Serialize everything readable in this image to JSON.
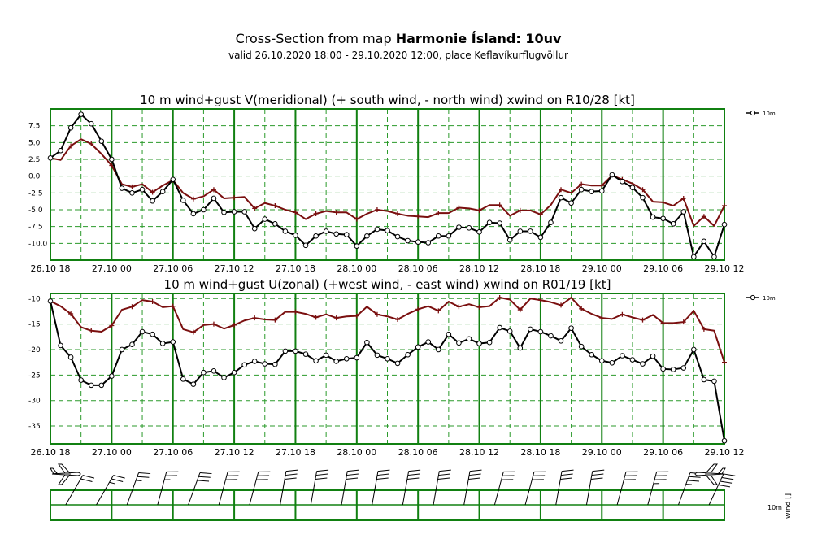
{
  "header": {
    "title_prefix": "Cross-Section from map",
    "title_bold": "Harmonie Ísland: 10uv",
    "subtitle": "valid 26.10.2020 18:00 - 29.10.2020 12:00, place Keflavíkurflugvöllur"
  },
  "colors": {
    "frame": "#118011",
    "grid_major": "#118011",
    "grid_minor": "#2b9a2b",
    "wind_series": "#000000",
    "gust_series": "#7a0f0f",
    "barb": "#000000"
  },
  "legend_label": "10m",
  "barb_labels": {
    "level": "10m",
    "param": "wind []"
  },
  "chart_data": [
    {
      "type": "line",
      "title": "10 m wind+gust V(meridional) (+ south wind, - north wind) xwind on R10/28 [kt]",
      "x_tick_labels": [
        "26.10 18",
        "27.10 00",
        "27.10 06",
        "27.10 12",
        "27.10 18",
        "28.10 00",
        "28.10 06",
        "28.10 12",
        "28.10 18",
        "29.10 00",
        "29.10 06",
        "29.10 12"
      ],
      "x_hours_range": [
        0,
        66
      ],
      "ylim": [
        -12.5,
        10
      ],
      "yticks": [
        7.5,
        5.0,
        2.5,
        0.0,
        -2.5,
        -5.0,
        -7.5,
        -10.0
      ],
      "ytick_labels": [
        "7.5",
        "5.0",
        "2.5",
        "0.0",
        "-2.5",
        "-5.0",
        "-7.5",
        "-10.0"
      ],
      "series": [
        {
          "name": "10m wind",
          "marker": "circle",
          "values": [
            2.7,
            3.8,
            7.2,
            9.2,
            7.8,
            5.2,
            2.5,
            -1.8,
            -2.5,
            -2.0,
            -3.7,
            -2.3,
            -0.5,
            -3.6,
            -5.6,
            -5.0,
            -3.3,
            -5.4,
            -5.3,
            -5.3,
            -7.8,
            -6.4,
            -7.1,
            -8.2,
            -8.8,
            -10.3,
            -8.9,
            -8.2,
            -8.6,
            -8.7,
            -10.4,
            -8.9,
            -7.9,
            -8.1,
            -9.0,
            -9.6,
            -9.8,
            -9.9,
            -8.9,
            -8.9,
            -7.6,
            -7.7,
            -8.3,
            -6.9,
            -7.0,
            -9.5,
            -8.2,
            -8.2,
            -9.1,
            -6.9,
            -3.2,
            -4.0,
            -2.0,
            -2.3,
            -2.2,
            0.2,
            -0.8,
            -1.7,
            -3.2,
            -6.1,
            -6.3,
            -7.1,
            -5.3,
            -12.0,
            -9.7,
            -12.0,
            -7.2
          ]
        },
        {
          "name": "10m gust",
          "marker": "plus",
          "values": [
            2.7,
            2.4,
            4.5,
            5.5,
            4.8,
            3.3,
            1.6,
            -1.2,
            -1.6,
            -1.2,
            -2.4,
            -1.4,
            -0.6,
            -2.5,
            -3.4,
            -3.0,
            -2.0,
            -3.3,
            -3.2,
            -3.1,
            -4.8,
            -4.0,
            -4.4,
            -5.0,
            -5.4,
            -6.4,
            -5.6,
            -5.2,
            -5.4,
            -5.4,
            -6.4,
            -5.6,
            -5.0,
            -5.2,
            -5.6,
            -5.9,
            -6.0,
            -6.1,
            -5.5,
            -5.5,
            -4.7,
            -4.8,
            -5.1,
            -4.3,
            -4.3,
            -5.9,
            -5.1,
            -5.1,
            -5.7,
            -4.3,
            -2.0,
            -2.5,
            -1.2,
            -1.4,
            -1.4,
            0.1,
            -0.5,
            -1.1,
            -2.0,
            -3.8,
            -3.9,
            -4.4,
            -3.3,
            -7.4,
            -6.0,
            -7.4,
            -4.4
          ]
        }
      ]
    },
    {
      "type": "line",
      "title": "10 m wind+gust U(zonal) (+west wind, - east wind) xwind on R01/19 [kt]",
      "x_tick_labels": [
        "26.10 18",
        "27.10 00",
        "27.10 06",
        "27.10 12",
        "27.10 18",
        "28.10 00",
        "28.10 06",
        "28.10 12",
        "28.10 18",
        "29.10 00",
        "29.10 06",
        "29.10 12"
      ],
      "x_hours_range": [
        0,
        66
      ],
      "ylim": [
        -38.5,
        -9
      ],
      "yticks": [
        -10,
        -15,
        -20,
        -25,
        -30,
        -35
      ],
      "ytick_labels": [
        "-10",
        "-15",
        "-20",
        "-25",
        "-30",
        "-35"
      ],
      "series": [
        {
          "name": "10m wind",
          "marker": "circle",
          "values": [
            -10.5,
            -19.2,
            -21.5,
            -26.0,
            -27.0,
            -27.0,
            -25.2,
            -20.0,
            -19.0,
            -16.5,
            -17.0,
            -18.8,
            -18.5,
            -25.8,
            -26.8,
            -24.5,
            -24.2,
            -25.5,
            -24.5,
            -23.0,
            -22.3,
            -22.8,
            -22.9,
            -20.3,
            -20.3,
            -20.9,
            -22.2,
            -21.1,
            -22.3,
            -21.8,
            -21.6,
            -18.6,
            -21.1,
            -21.8,
            -22.7,
            -21.0,
            -19.5,
            -18.5,
            -20.0,
            -17.0,
            -18.7,
            -17.9,
            -18.8,
            -18.6,
            -15.7,
            -16.4,
            -19.7,
            -16.0,
            -16.5,
            -17.3,
            -18.3,
            -15.8,
            -19.4,
            -21.0,
            -22.2,
            -22.6,
            -21.2,
            -22.0,
            -22.8,
            -21.3,
            -23.8,
            -23.9,
            -23.6,
            -20.0,
            -25.9,
            -26.2,
            -37.9
          ]
        },
        {
          "name": "10m gust",
          "marker": "plus",
          "values": [
            -10.5,
            -11.5,
            -13.0,
            -15.6,
            -16.3,
            -16.5,
            -15.3,
            -12.2,
            -11.6,
            -10.3,
            -10.6,
            -11.7,
            -11.5,
            -16.0,
            -16.6,
            -15.2,
            -15.0,
            -15.9,
            -15.2,
            -14.3,
            -13.8,
            -14.1,
            -14.2,
            -12.6,
            -12.6,
            -13.0,
            -13.7,
            -13.1,
            -13.8,
            -13.5,
            -13.4,
            -11.6,
            -13.1,
            -13.5,
            -14.1,
            -13.0,
            -12.1,
            -11.5,
            -12.4,
            -10.6,
            -11.6,
            -11.1,
            -11.7,
            -11.5,
            -9.8,
            -10.2,
            -12.2,
            -10.0,
            -10.3,
            -10.7,
            -11.3,
            -9.8,
            -12.0,
            -13.0,
            -13.8,
            -14.0,
            -13.1,
            -13.7,
            -14.2,
            -13.2,
            -14.8,
            -14.8,
            -14.6,
            -12.4,
            -16.0,
            -16.3,
            -22.5
          ]
        }
      ]
    },
    {
      "type": "wind-barbs",
      "level": "10m",
      "x_hours_range": [
        0,
        66
      ],
      "barbs": [
        {
          "h": 1.5,
          "dir": 330,
          "spd": 20
        },
        {
          "h": 4.5,
          "dir": 330,
          "spd": 25
        },
        {
          "h": 7.5,
          "dir": 340,
          "spd": 25
        },
        {
          "h": 10.5,
          "dir": 345,
          "spd": 25
        },
        {
          "h": 13.5,
          "dir": 340,
          "spd": 30
        },
        {
          "h": 16.5,
          "dir": 345,
          "spd": 30
        },
        {
          "h": 19.5,
          "dir": 345,
          "spd": 30
        },
        {
          "h": 22.5,
          "dir": 350,
          "spd": 30
        },
        {
          "h": 25.5,
          "dir": 350,
          "spd": 30
        },
        {
          "h": 28.5,
          "dir": 350,
          "spd": 30
        },
        {
          "h": 31.5,
          "dir": 350,
          "spd": 30
        },
        {
          "h": 34.5,
          "dir": 350,
          "spd": 30
        },
        {
          "h": 37.5,
          "dir": 350,
          "spd": 30
        },
        {
          "h": 40.5,
          "dir": 350,
          "spd": 30
        },
        {
          "h": 43.5,
          "dir": 345,
          "spd": 30
        },
        {
          "h": 46.5,
          "dir": 345,
          "spd": 30
        },
        {
          "h": 49.5,
          "dir": 350,
          "spd": 30
        },
        {
          "h": 52.5,
          "dir": 350,
          "spd": 30
        },
        {
          "h": 55.5,
          "dir": 345,
          "spd": 30
        },
        {
          "h": 58.5,
          "dir": 345,
          "spd": 35
        },
        {
          "h": 61.5,
          "dir": 340,
          "spd": 35
        },
        {
          "h": 64.5,
          "dir": 335,
          "spd": 40
        }
      ]
    }
  ]
}
